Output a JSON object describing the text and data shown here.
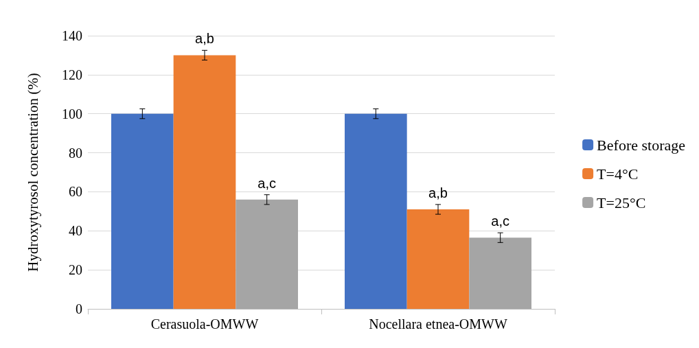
{
  "chart_data": {
    "type": "bar",
    "ylabel": "Hydroxytyrosol concentration (%)",
    "categories": [
      "Cerasuola-OMWW",
      "Nocellara etnea-OMWW"
    ],
    "series": [
      {
        "name": "Before storage",
        "color": "#4472c4",
        "values": [
          100,
          100
        ],
        "errors": [
          2.5,
          2.5
        ]
      },
      {
        "name": "T=4°C",
        "color": "#ed7d31",
        "values": [
          130,
          51
        ],
        "errors": [
          2.5,
          2.5
        ],
        "value_labels": [
          "a,b",
          "a,b"
        ]
      },
      {
        "name": "T=25°C",
        "color": "#a5a5a5",
        "values": [
          56,
          36.5
        ],
        "errors": [
          2.5,
          2.5
        ],
        "value_labels": [
          "a,c",
          "a,c"
        ]
      }
    ],
    "ylim": [
      0,
      140
    ],
    "yticks": [
      0,
      20,
      40,
      60,
      80,
      100,
      120,
      140
    ],
    "grid": "y",
    "legend": "right"
  }
}
